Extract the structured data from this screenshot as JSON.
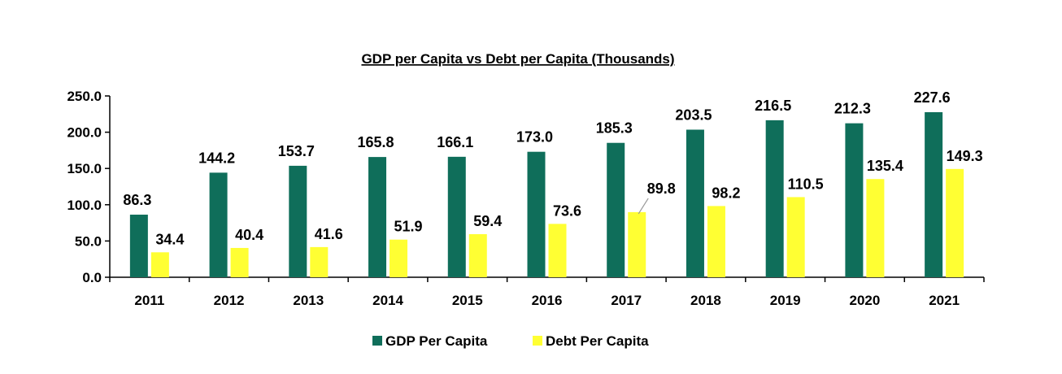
{
  "chart_data": {
    "type": "bar",
    "title": "GDP per Capita vs Debt per Capita (Thousands)",
    "categories": [
      "2011",
      "2012",
      "2013",
      "2014",
      "2015",
      "2016",
      "2017",
      "2018",
      "2019",
      "2020",
      "2021"
    ],
    "series": [
      {
        "name": "GDP Per Capita",
        "color": "#0f6e5a",
        "values": [
          86.3,
          144.2,
          153.7,
          165.8,
          166.1,
          173.0,
          185.3,
          203.5,
          216.5,
          212.3,
          227.6
        ],
        "labels": [
          "86.3",
          "144.2",
          "153.7",
          "165.8",
          "166.1",
          "173.0",
          "185.3",
          "203.5",
          "216.5",
          "212.3",
          "227.6"
        ]
      },
      {
        "name": "Debt Per Capita",
        "color": "#ffff33",
        "values": [
          34.4,
          40.4,
          41.6,
          51.9,
          59.4,
          73.6,
          89.8,
          98.2,
          110.5,
          135.4,
          149.3
        ],
        "labels": [
          "34.4",
          "40.4",
          "41.6",
          "51.9",
          "59.4",
          "73.6",
          "89.8",
          "98.2",
          "110.5",
          "135.4",
          "149.3"
        ]
      }
    ],
    "ylim": [
      0,
      250
    ],
    "yticks": [
      "0.0",
      "50.0",
      "100.0",
      "150.0",
      "200.0",
      "250.0"
    ],
    "grid": false,
    "legend_position": "bottom"
  }
}
